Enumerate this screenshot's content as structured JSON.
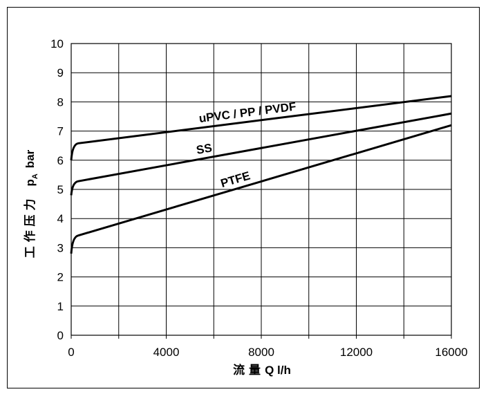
{
  "chart_data": {
    "type": "line",
    "xlabel_prefix": "流 量",
    "xlabel_unit": "Q l/h",
    "ylabel_prefix": "工 作 压 力",
    "ylabel_symbol": "p",
    "ylabel_subscript": "A",
    "ylabel_unit": "bar",
    "xlim": [
      0,
      16000
    ],
    "ylim": [
      0,
      10
    ],
    "x_ticks": [
      0,
      4000,
      8000,
      12000,
      16000
    ],
    "y_ticks": [
      0,
      1,
      2,
      3,
      4,
      5,
      6,
      7,
      8,
      9,
      10
    ],
    "x_grid_step": 2000,
    "grid": true,
    "series": [
      {
        "name": "uPVC / PP / PVDF",
        "x": [
          0,
          50,
          150,
          300,
          16000
        ],
        "y": [
          6.0,
          6.4,
          6.55,
          6.58,
          8.2
        ]
      },
      {
        "name": "SS",
        "x": [
          0,
          50,
          150,
          300,
          16000
        ],
        "y": [
          4.8,
          5.15,
          5.25,
          5.28,
          7.6
        ]
      },
      {
        "name": "PTFE",
        "x": [
          0,
          50,
          150,
          300,
          16000
        ],
        "y": [
          2.8,
          3.25,
          3.38,
          3.42,
          7.2
        ]
      }
    ]
  }
}
